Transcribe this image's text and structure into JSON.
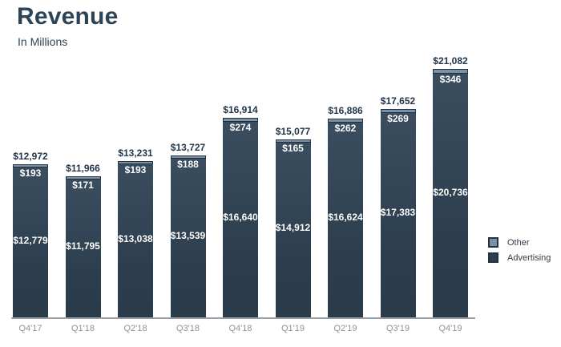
{
  "chart_data": {
    "type": "bar",
    "stacked": true,
    "title": "Revenue",
    "subtitle": "In Millions",
    "categories": [
      "Q4'17",
      "Q1'18",
      "Q2'18",
      "Q3'18",
      "Q4'18",
      "Q1'19",
      "Q2'19",
      "Q3'19",
      "Q4'19"
    ],
    "series": [
      {
        "name": "Other",
        "color": "#7b90a4",
        "values": [
          193,
          171,
          193,
          188,
          274,
          165,
          262,
          269,
          346
        ],
        "labels": [
          "$193",
          "$171",
          "$193",
          "$188",
          "$274",
          "$165",
          "$262",
          "$269",
          "$346"
        ]
      },
      {
        "name": "Advertising",
        "color": "#2e4050",
        "values": [
          12779,
          11795,
          13038,
          13539,
          16640,
          14912,
          16624,
          17383,
          20736
        ],
        "labels": [
          "$12,779",
          "$11,795",
          "$13,038",
          "$13,539",
          "$16,640",
          "$14,912",
          "$16,624",
          "$17,383",
          "$20,736"
        ]
      }
    ],
    "totals": [
      12972,
      11966,
      13231,
      13727,
      16914,
      15077,
      16886,
      17652,
      21082
    ],
    "total_labels": [
      "$12,972",
      "$11,966",
      "$13,231",
      "$13,727",
      "$16,914",
      "$15,077",
      "$16,886",
      "$17,652",
      "$21,082"
    ],
    "legend_position": "right",
    "grid": false,
    "axis_line_color": "#9ba1a7",
    "tick_color": "#8d939a",
    "total_label_color": "#22364a",
    "value_label_color": "#ffffff"
  }
}
